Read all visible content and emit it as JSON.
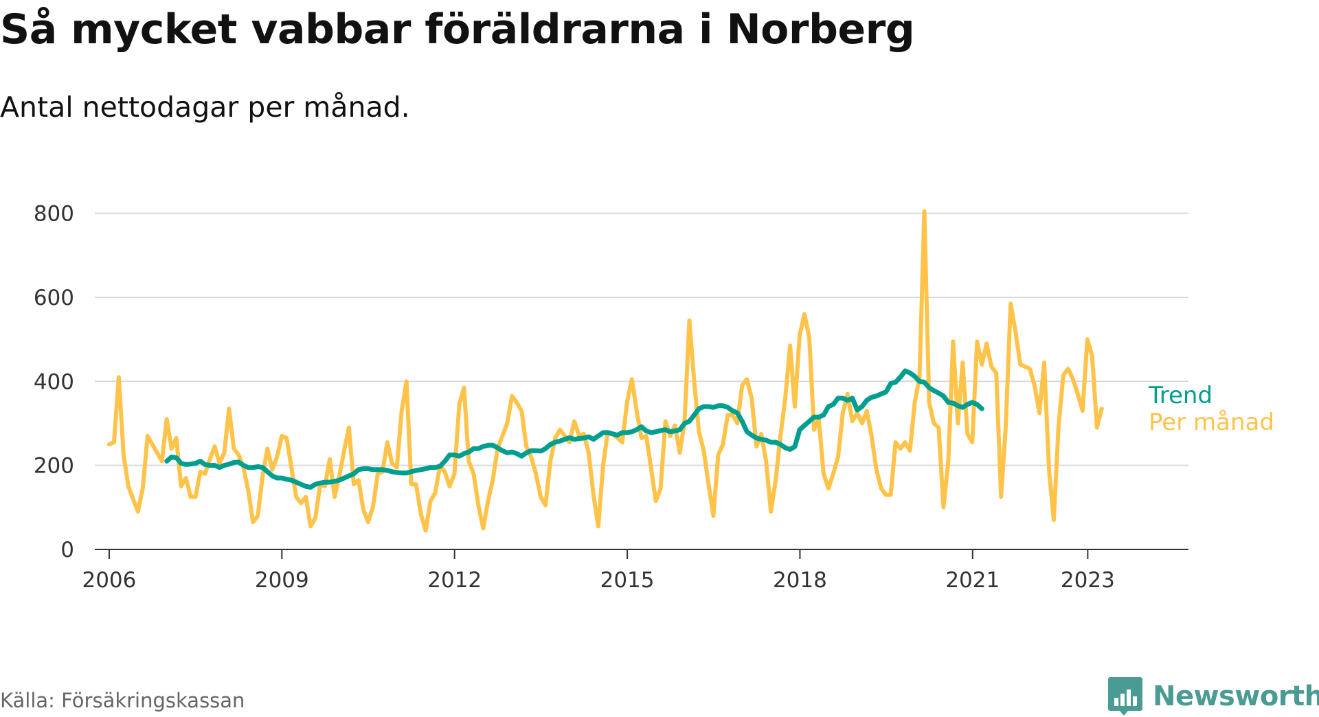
{
  "chart_data": {
    "type": "line",
    "title": "Så mycket vabbar föräldrarna i Norberg",
    "subtitle": "Antal nettodagar per månad.",
    "source": "Källa: Försäkringskassan",
    "brand": "Newsworthy",
    "ylim": [
      0,
      850
    ],
    "yticks": [
      0,
      200,
      400,
      600,
      800
    ],
    "xlim": [
      2005.75,
      2024.75
    ],
    "xticks": [
      2006,
      2009,
      2012,
      2015,
      2018,
      2021,
      2023
    ],
    "xtick_labels": [
      "2006",
      "2009",
      "2012",
      "2015",
      "2018",
      "2021",
      "2023"
    ],
    "grid": true,
    "series": [
      {
        "name": "Per månad",
        "color": "#ffc34a",
        "start": 2006.0,
        "step": 0.0833,
        "values": [
          250,
          255,
          410,
          225,
          150,
          120,
          90,
          145,
          270,
          250,
          230,
          210,
          310,
          240,
          265,
          150,
          170,
          125,
          125,
          185,
          180,
          215,
          245,
          205,
          230,
          335,
          240,
          225,
          195,
          140,
          65,
          80,
          175,
          240,
          190,
          220,
          270,
          265,
          195,
          125,
          110,
          125,
          55,
          75,
          155,
          150,
          215,
          125,
          175,
          235,
          290,
          155,
          165,
          95,
          65,
          100,
          180,
          185,
          255,
          205,
          195,
          330,
          400,
          155,
          155,
          85,
          45,
          115,
          135,
          200,
          185,
          150,
          180,
          345,
          385,
          210,
          180,
          105,
          50,
          115,
          165,
          240,
          270,
          300,
          365,
          350,
          330,
          245,
          220,
          180,
          125,
          105,
          210,
          265,
          285,
          270,
          255,
          305,
          270,
          275,
          230,
          130,
          55,
          200,
          280,
          275,
          265,
          255,
          350,
          405,
          330,
          265,
          270,
          195,
          115,
          145,
          305,
          270,
          295,
          230,
          305,
          545,
          400,
          280,
          235,
          155,
          80,
          225,
          250,
          320,
          320,
          300,
          390,
          405,
          360,
          245,
          275,
          210,
          90,
          165,
          270,
          360,
          485,
          340,
          510,
          560,
          505,
          285,
          310,
          180,
          145,
          180,
          220,
          325,
          370,
          305,
          325,
          300,
          330,
          270,
          190,
          145,
          130,
          130,
          255,
          240,
          255,
          235,
          350,
          410,
          805,
          350,
          300,
          290,
          100,
          210,
          495,
          300,
          445,
          275,
          255,
          495,
          440,
          490,
          435,
          420,
          125,
          295,
          585,
          520,
          440,
          435,
          430,
          390,
          325,
          445,
          190,
          70,
          295,
          415,
          430,
          405,
          370,
          330,
          500,
          460,
          290,
          335
        ],
        "end_label": "Per månad"
      },
      {
        "name": "Trend",
        "color": "#009e8f",
        "start": 2007.0,
        "step": 0.0833,
        "values": [
          210,
          220,
          218,
          205,
          202,
          203,
          205,
          210,
          202,
          200,
          200,
          195,
          200,
          203,
          207,
          208,
          200,
          195,
          195,
          197,
          195,
          185,
          175,
          170,
          170,
          167,
          165,
          160,
          155,
          150,
          148,
          155,
          158,
          160,
          160,
          162,
          165,
          170,
          175,
          180,
          190,
          192,
          192,
          190,
          190,
          190,
          188,
          185,
          183,
          182,
          182,
          185,
          188,
          190,
          192,
          195,
          195,
          198,
          210,
          225,
          225,
          222,
          228,
          232,
          240,
          240,
          245,
          248,
          248,
          242,
          235,
          230,
          232,
          228,
          222,
          230,
          235,
          235,
          234,
          240,
          250,
          255,
          258,
          262,
          266,
          262,
          264,
          265,
          268,
          262,
          270,
          278,
          278,
          275,
          272,
          278,
          278,
          280,
          285,
          292,
          282,
          278,
          280,
          283,
          285,
          280,
          282,
          285,
          300,
          305,
          320,
          335,
          340,
          340,
          338,
          342,
          342,
          338,
          330,
          325,
          305,
          280,
          272,
          265,
          262,
          260,
          255,
          255,
          250,
          242,
          238,
          245,
          285,
          295,
          305,
          315,
          315,
          320,
          340,
          345,
          360,
          360,
          355,
          360,
          332,
          340,
          355,
          362,
          365,
          370,
          375,
          395,
          398,
          410,
          425,
          420,
          412,
          400,
          398,
          385,
          378,
          372,
          365,
          350,
          348,
          342,
          338,
          345,
          350,
          345,
          335
        ],
        "end_label": "Trend"
      }
    ]
  }
}
